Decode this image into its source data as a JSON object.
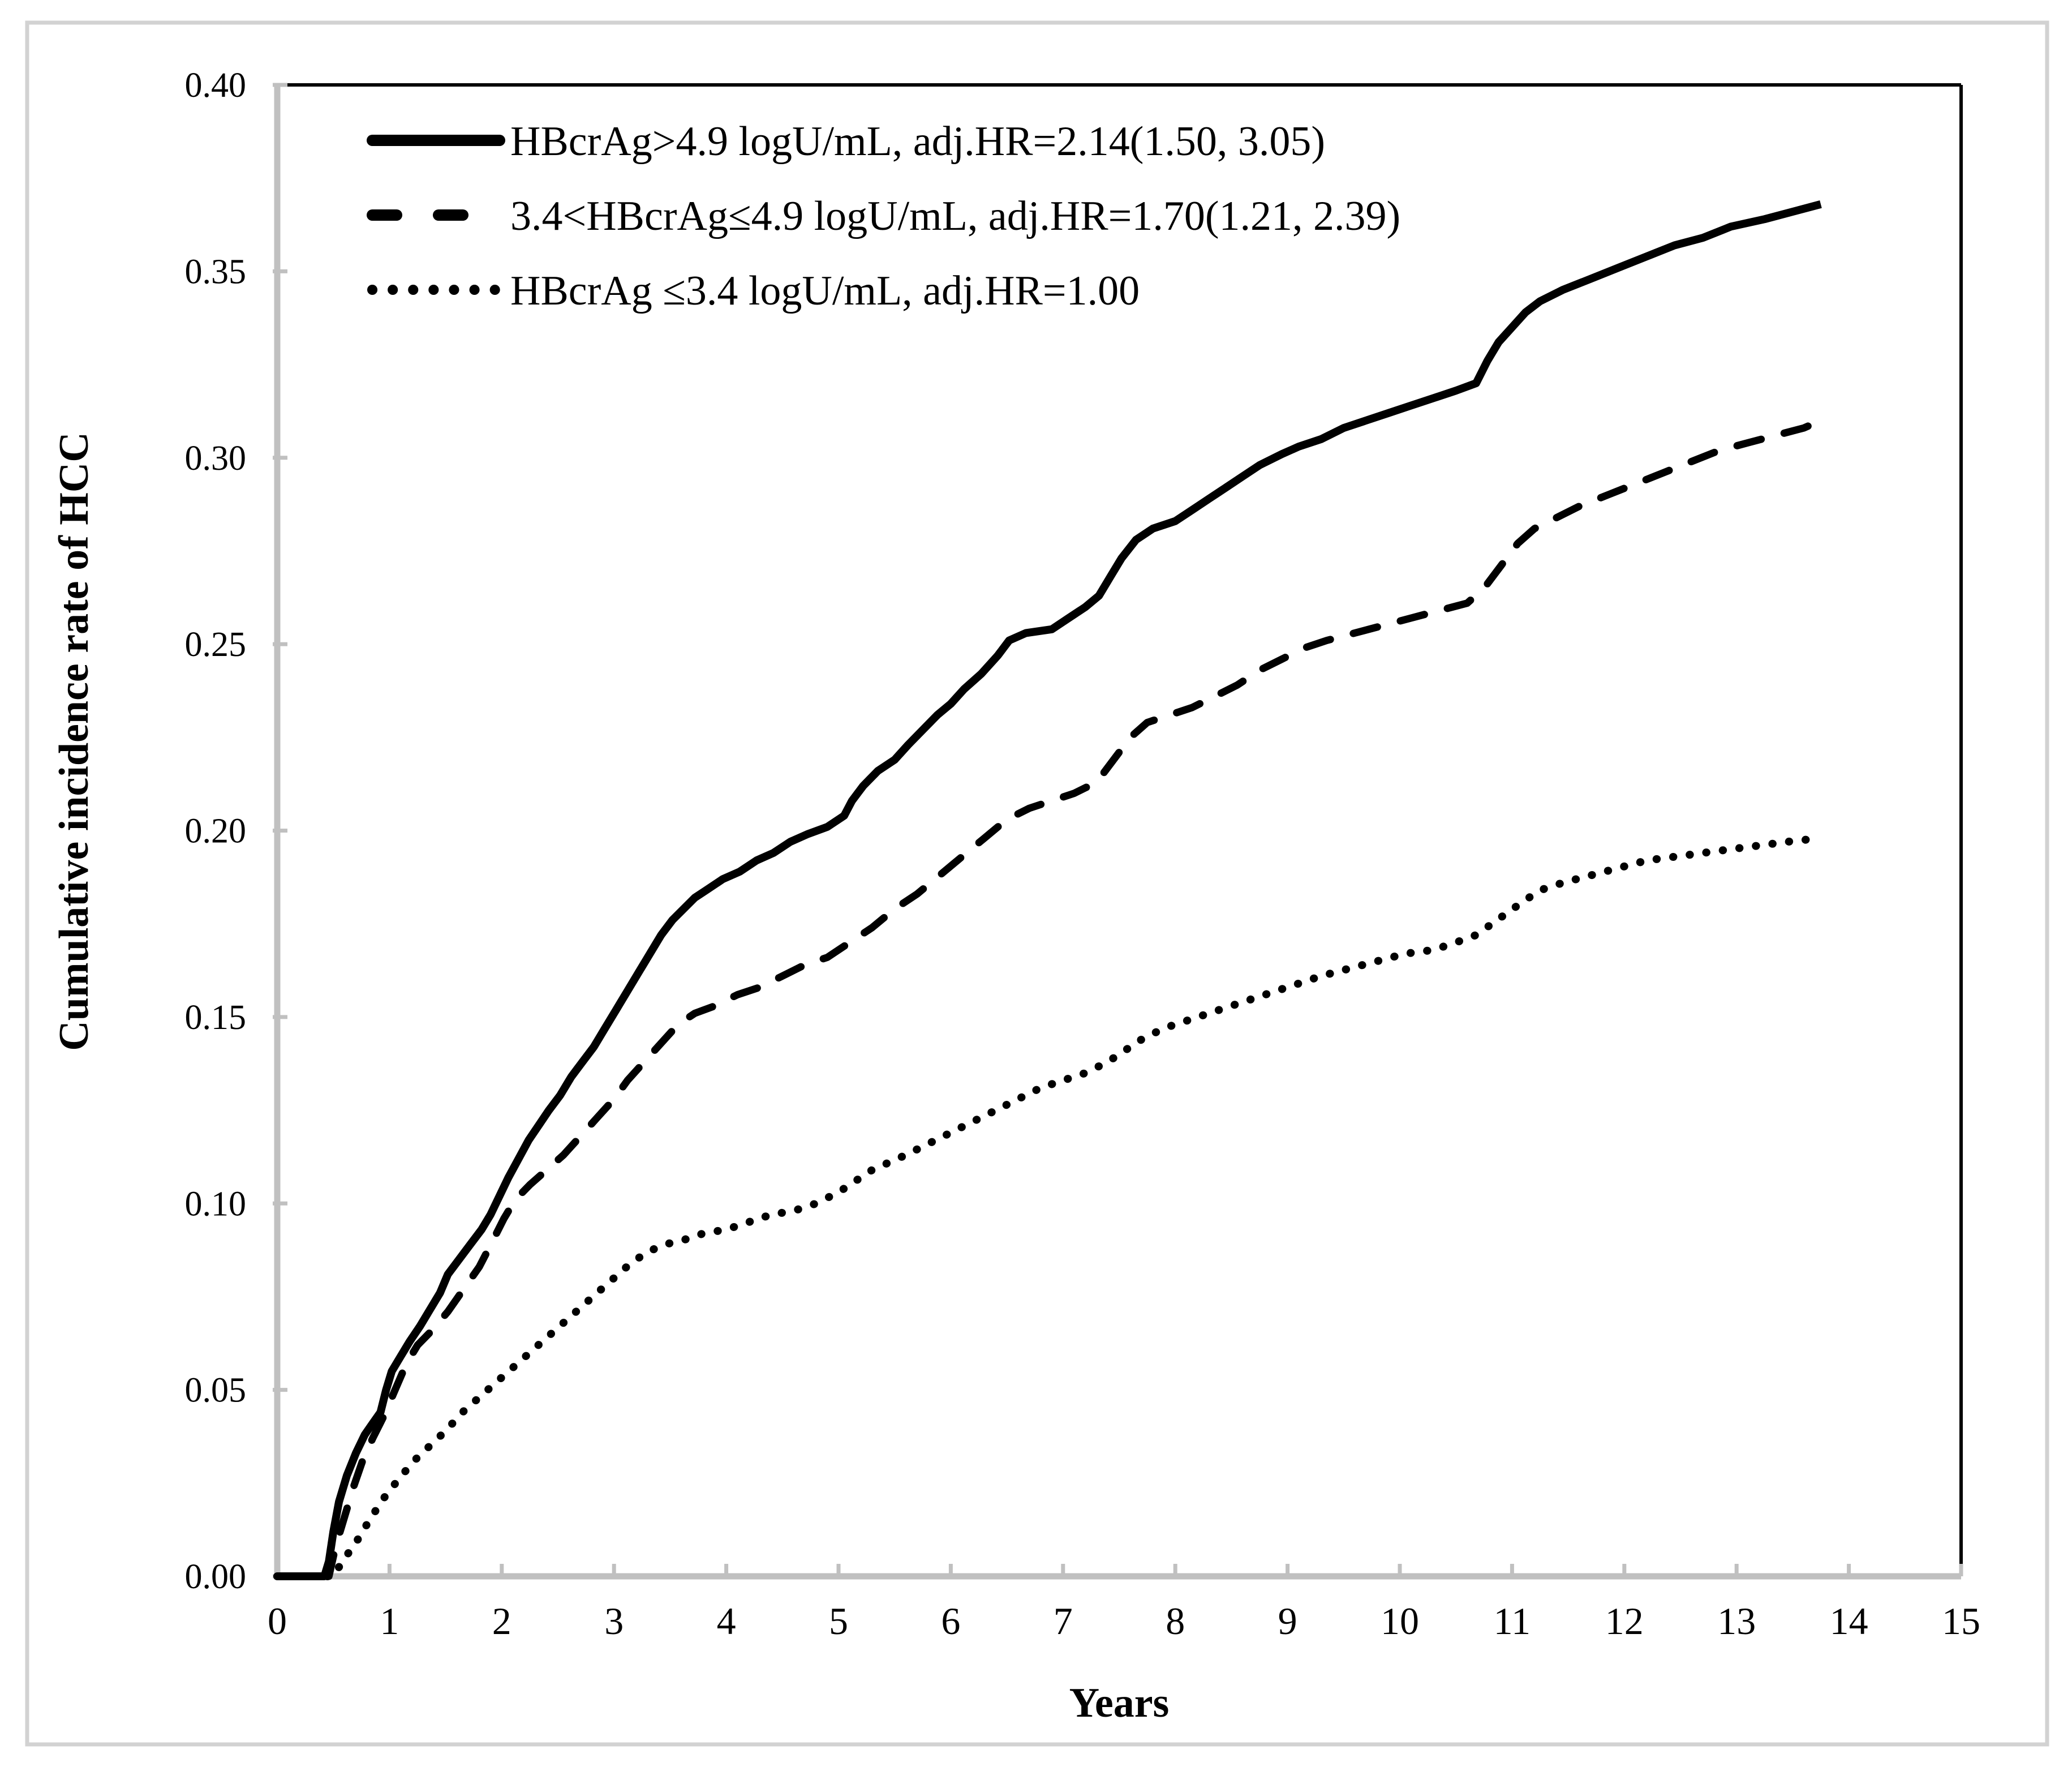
{
  "chart_data": {
    "type": "line",
    "title": "",
    "xlabel": "Years",
    "ylabel": "Cumulative incidence rate of HCC",
    "xlim": [
      0,
      15
    ],
    "ylim": [
      0.0,
      0.4
    ],
    "x_ticks": [
      0,
      1,
      2,
      3,
      4,
      5,
      6,
      7,
      8,
      9,
      10,
      11,
      12,
      13,
      14,
      15
    ],
    "y_ticks": [
      "0.00",
      "0.05",
      "0.10",
      "0.15",
      "0.20",
      "0.25",
      "0.30",
      "0.35",
      "0.40"
    ],
    "grid": false,
    "legend_position": "inside-top-left",
    "colors": {
      "line": "#000000",
      "axis": "#c0c0c0",
      "plot_border": "#000000",
      "figure_border": "#d2d2d2",
      "background": "#ffffff"
    },
    "series": [
      {
        "name": "hbcrag-gt-4.9",
        "label": "HBcrAg>4.9  logU/mL, adj.HR=2.14(1.50, 3.05)",
        "line_style": "solid",
        "adj_hr": "2.14(1.50, 3.05)",
        "points": [
          [
            0,
            0
          ],
          [
            0.42,
            0
          ],
          [
            0.46,
            0.004
          ],
          [
            0.5,
            0.012
          ],
          [
            0.55,
            0.02
          ],
          [
            0.62,
            0.027
          ],
          [
            0.7,
            0.033
          ],
          [
            0.78,
            0.038
          ],
          [
            0.85,
            0.041
          ],
          [
            0.92,
            0.044
          ],
          [
            0.97,
            0.05
          ],
          [
            1.02,
            0.055
          ],
          [
            1.1,
            0.059
          ],
          [
            1.18,
            0.063
          ],
          [
            1.27,
            0.067
          ],
          [
            1.35,
            0.071
          ],
          [
            1.45,
            0.076
          ],
          [
            1.52,
            0.081
          ],
          [
            1.62,
            0.085
          ],
          [
            1.72,
            0.089
          ],
          [
            1.82,
            0.093
          ],
          [
            1.9,
            0.097
          ],
          [
            1.98,
            0.102
          ],
          [
            2.06,
            0.107
          ],
          [
            2.15,
            0.112
          ],
          [
            2.24,
            0.117
          ],
          [
            2.33,
            0.121
          ],
          [
            2.42,
            0.125
          ],
          [
            2.52,
            0.129
          ],
          [
            2.62,
            0.134
          ],
          [
            2.72,
            0.138
          ],
          [
            2.82,
            0.142
          ],
          [
            2.92,
            0.147
          ],
          [
            3.02,
            0.152
          ],
          [
            3.12,
            0.157
          ],
          [
            3.22,
            0.162
          ],
          [
            3.32,
            0.167
          ],
          [
            3.42,
            0.172
          ],
          [
            3.52,
            0.176
          ],
          [
            3.62,
            0.179
          ],
          [
            3.72,
            0.182
          ],
          [
            3.82,
            0.184
          ],
          [
            3.97,
            0.187
          ],
          [
            4.12,
            0.189
          ],
          [
            4.27,
            0.192
          ],
          [
            4.42,
            0.194
          ],
          [
            4.57,
            0.197
          ],
          [
            4.72,
            0.199
          ],
          [
            4.9,
            0.201
          ],
          [
            5.05,
            0.204
          ],
          [
            5.12,
            0.208
          ],
          [
            5.22,
            0.212
          ],
          [
            5.35,
            0.216
          ],
          [
            5.5,
            0.219
          ],
          [
            5.62,
            0.223
          ],
          [
            5.75,
            0.227
          ],
          [
            5.88,
            0.231
          ],
          [
            6.0,
            0.234
          ],
          [
            6.12,
            0.238
          ],
          [
            6.27,
            0.242
          ],
          [
            6.42,
            0.247
          ],
          [
            6.52,
            0.251
          ],
          [
            6.67,
            0.253
          ],
          [
            6.9,
            0.254
          ],
          [
            7.05,
            0.257
          ],
          [
            7.2,
            0.26
          ],
          [
            7.32,
            0.263
          ],
          [
            7.42,
            0.268
          ],
          [
            7.52,
            0.273
          ],
          [
            7.65,
            0.278
          ],
          [
            7.8,
            0.281
          ],
          [
            8.0,
            0.283
          ],
          [
            8.15,
            0.286
          ],
          [
            8.3,
            0.289
          ],
          [
            8.45,
            0.292
          ],
          [
            8.6,
            0.295
          ],
          [
            8.75,
            0.298
          ],
          [
            8.95,
            0.301
          ],
          [
            9.1,
            0.303
          ],
          [
            9.3,
            0.305
          ],
          [
            9.5,
            0.308
          ],
          [
            9.7,
            0.31
          ],
          [
            9.9,
            0.312
          ],
          [
            10.1,
            0.314
          ],
          [
            10.3,
            0.316
          ],
          [
            10.5,
            0.318
          ],
          [
            10.68,
            0.32
          ],
          [
            10.78,
            0.326
          ],
          [
            10.88,
            0.331
          ],
          [
            11.0,
            0.335
          ],
          [
            11.12,
            0.339
          ],
          [
            11.25,
            0.342
          ],
          [
            11.45,
            0.345
          ],
          [
            11.7,
            0.348
          ],
          [
            11.95,
            0.351
          ],
          [
            12.2,
            0.354
          ],
          [
            12.45,
            0.357
          ],
          [
            12.7,
            0.359
          ],
          [
            12.95,
            0.362
          ],
          [
            13.25,
            0.364
          ],
          [
            13.5,
            0.366
          ],
          [
            13.75,
            0.368
          ]
        ]
      },
      {
        "name": "hbcrag-3.4-to-4.9",
        "label": "3.4<HBcrAg≤4.9 logU/mL, adj.HR=1.70(1.21, 2.39)",
        "line_style": "dashed",
        "adj_hr": "1.70(1.21, 2.39)",
        "points": [
          [
            0,
            0
          ],
          [
            0.46,
            0
          ],
          [
            0.52,
            0.008
          ],
          [
            0.6,
            0.016
          ],
          [
            0.68,
            0.024
          ],
          [
            0.76,
            0.031
          ],
          [
            0.85,
            0.037
          ],
          [
            0.95,
            0.043
          ],
          [
            1.05,
            0.05
          ],
          [
            1.15,
            0.057
          ],
          [
            1.25,
            0.062
          ],
          [
            1.38,
            0.066
          ],
          [
            1.52,
            0.071
          ],
          [
            1.66,
            0.077
          ],
          [
            1.8,
            0.083
          ],
          [
            1.92,
            0.09
          ],
          [
            2.02,
            0.096
          ],
          [
            2.12,
            0.101
          ],
          [
            2.25,
            0.105
          ],
          [
            2.4,
            0.109
          ],
          [
            2.55,
            0.113
          ],
          [
            2.7,
            0.118
          ],
          [
            2.85,
            0.123
          ],
          [
            3.0,
            0.128
          ],
          [
            3.12,
            0.133
          ],
          [
            3.27,
            0.138
          ],
          [
            3.42,
            0.143
          ],
          [
            3.57,
            0.148
          ],
          [
            3.72,
            0.151
          ],
          [
            3.9,
            0.153
          ],
          [
            4.1,
            0.156
          ],
          [
            4.3,
            0.158
          ],
          [
            4.5,
            0.161
          ],
          [
            4.7,
            0.164
          ],
          [
            4.9,
            0.166
          ],
          [
            5.1,
            0.17
          ],
          [
            5.3,
            0.174
          ],
          [
            5.5,
            0.179
          ],
          [
            5.7,
            0.183
          ],
          [
            5.9,
            0.188
          ],
          [
            6.1,
            0.193
          ],
          [
            6.3,
            0.198
          ],
          [
            6.5,
            0.203
          ],
          [
            6.7,
            0.206
          ],
          [
            6.9,
            0.208
          ],
          [
            7.1,
            0.21
          ],
          [
            7.3,
            0.213
          ],
          [
            7.45,
            0.219
          ],
          [
            7.6,
            0.225
          ],
          [
            7.75,
            0.229
          ],
          [
            7.95,
            0.231
          ],
          [
            8.15,
            0.233
          ],
          [
            8.35,
            0.236
          ],
          [
            8.55,
            0.239
          ],
          [
            8.75,
            0.243
          ],
          [
            8.95,
            0.246
          ],
          [
            9.15,
            0.249
          ],
          [
            9.35,
            0.251
          ],
          [
            9.6,
            0.253
          ],
          [
            9.85,
            0.255
          ],
          [
            10.1,
            0.257
          ],
          [
            10.35,
            0.259
          ],
          [
            10.6,
            0.261
          ],
          [
            10.75,
            0.265
          ],
          [
            10.9,
            0.271
          ],
          [
            11.05,
            0.277
          ],
          [
            11.2,
            0.281
          ],
          [
            11.4,
            0.284
          ],
          [
            11.6,
            0.287
          ],
          [
            11.85,
            0.29
          ],
          [
            12.1,
            0.293
          ],
          [
            12.35,
            0.296
          ],
          [
            12.6,
            0.299
          ],
          [
            12.85,
            0.302
          ],
          [
            13.1,
            0.304
          ],
          [
            13.35,
            0.306
          ],
          [
            13.6,
            0.308
          ],
          [
            13.75,
            0.31
          ]
        ]
      },
      {
        "name": "hbcrag-le-3.4",
        "label": "HBcrAg ≤3.4 logU/mL, adj.HR=1.00",
        "line_style": "dotted",
        "adj_hr": "1.00",
        "points": [
          [
            0,
            0
          ],
          [
            0.5,
            0
          ],
          [
            0.58,
            0.004
          ],
          [
            0.7,
            0.009
          ],
          [
            0.82,
            0.015
          ],
          [
            0.95,
            0.021
          ],
          [
            1.08,
            0.026
          ],
          [
            1.22,
            0.031
          ],
          [
            1.36,
            0.035
          ],
          [
            1.5,
            0.039
          ],
          [
            1.65,
            0.044
          ],
          [
            1.8,
            0.048
          ],
          [
            1.95,
            0.052
          ],
          [
            2.1,
            0.056
          ],
          [
            2.25,
            0.06
          ],
          [
            2.4,
            0.064
          ],
          [
            2.55,
            0.068
          ],
          [
            2.7,
            0.072
          ],
          [
            2.85,
            0.076
          ],
          [
            3.0,
            0.08
          ],
          [
            3.15,
            0.084
          ],
          [
            3.3,
            0.087
          ],
          [
            3.45,
            0.089
          ],
          [
            3.6,
            0.09
          ],
          [
            3.8,
            0.092
          ],
          [
            4.0,
            0.093
          ],
          [
            4.2,
            0.095
          ],
          [
            4.4,
            0.097
          ],
          [
            4.6,
            0.098
          ],
          [
            4.8,
            0.1
          ],
          [
            5.0,
            0.103
          ],
          [
            5.15,
            0.106
          ],
          [
            5.3,
            0.109
          ],
          [
            5.45,
            0.111
          ],
          [
            5.6,
            0.113
          ],
          [
            5.8,
            0.116
          ],
          [
            6.0,
            0.119
          ],
          [
            6.2,
            0.122
          ],
          [
            6.4,
            0.125
          ],
          [
            6.6,
            0.128
          ],
          [
            6.8,
            0.131
          ],
          [
            7.0,
            0.133
          ],
          [
            7.2,
            0.135
          ],
          [
            7.4,
            0.138
          ],
          [
            7.55,
            0.141
          ],
          [
            7.7,
            0.144
          ],
          [
            7.9,
            0.147
          ],
          [
            8.1,
            0.149
          ],
          [
            8.3,
            0.151
          ],
          [
            8.5,
            0.153
          ],
          [
            8.7,
            0.155
          ],
          [
            8.9,
            0.157
          ],
          [
            9.1,
            0.159
          ],
          [
            9.3,
            0.161
          ],
          [
            9.55,
            0.163
          ],
          [
            9.8,
            0.165
          ],
          [
            10.05,
            0.167
          ],
          [
            10.3,
            0.168
          ],
          [
            10.5,
            0.17
          ],
          [
            10.68,
            0.172
          ],
          [
            10.82,
            0.175
          ],
          [
            10.96,
            0.178
          ],
          [
            11.1,
            0.181
          ],
          [
            11.25,
            0.184
          ],
          [
            11.45,
            0.186
          ],
          [
            11.7,
            0.188
          ],
          [
            11.95,
            0.19
          ],
          [
            12.2,
            0.192
          ],
          [
            12.45,
            0.193
          ],
          [
            12.7,
            0.194
          ],
          [
            12.95,
            0.195
          ],
          [
            13.2,
            0.196
          ],
          [
            13.45,
            0.197
          ],
          [
            13.75,
            0.198
          ]
        ]
      }
    ]
  }
}
